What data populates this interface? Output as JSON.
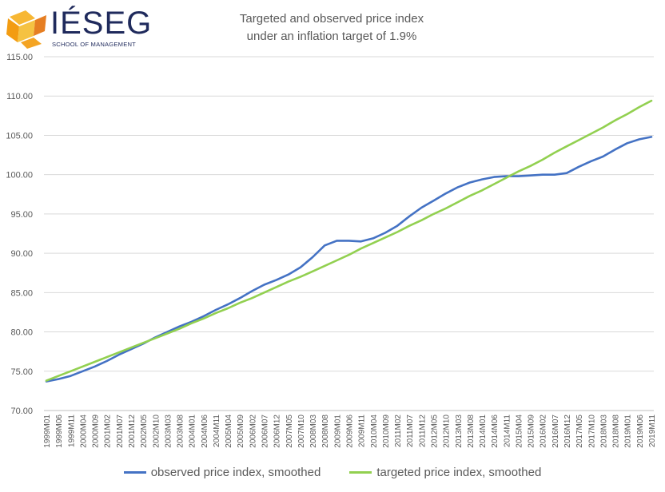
{
  "logo": {
    "name": "IÉSEG",
    "subtitle": "SCHOOL OF MANAGEMENT"
  },
  "chart_data": {
    "type": "line",
    "title": [
      "Targeted and observed price index",
      "under an inflation target of 1.9%"
    ],
    "xlabel": "",
    "ylabel": "",
    "ylim": [
      70,
      115
    ],
    "y_ticks": [
      "70.00",
      "75.00",
      "80.00",
      "85.00",
      "90.00",
      "95.00",
      "100.00",
      "105.00",
      "110.00",
      "115.00"
    ],
    "grid": true,
    "legend_position": "bottom",
    "x_tick_labels": [
      "1999M01",
      "1999M06",
      "1999M11",
      "2000M04",
      "2000M09",
      "2001M02",
      "2001M07",
      "2001M12",
      "2002M05",
      "2002M10",
      "2003M03",
      "2003M08",
      "2004M01",
      "2004M06",
      "2004M11",
      "2005M04",
      "2005M09",
      "2006M02",
      "2006M07",
      "2006M12",
      "2007M05",
      "2007M10",
      "2008M03",
      "2008M08",
      "2009M01",
      "2009M06",
      "2009M11",
      "2010M04",
      "2010M09",
      "2011M02",
      "2011M07",
      "2011M12",
      "2012M05",
      "2012M10",
      "2013M03",
      "2013M08",
      "2014M01",
      "2014M06",
      "2014M11",
      "2015M04",
      "2015M09",
      "2016M02",
      "2016M07",
      "2016M12",
      "2017M05",
      "2017M10",
      "2018M03",
      "2018M08",
      "2019M01",
      "2019M06",
      "2019M11"
    ],
    "series": [
      {
        "name": "observed price index, smoothed",
        "color": "#4472c4",
        "values": [
          73.7,
          74.0,
          74.4,
          75.0,
          75.6,
          76.3,
          77.1,
          77.8,
          78.5,
          79.3,
          80.0,
          80.7,
          81.3,
          82.0,
          82.8,
          83.5,
          84.3,
          85.2,
          86.0,
          86.6,
          87.3,
          88.2,
          89.5,
          91.0,
          91.6,
          91.6,
          91.5,
          91.9,
          92.6,
          93.5,
          94.7,
          95.8,
          96.7,
          97.6,
          98.4,
          99.0,
          99.4,
          99.7,
          99.8,
          99.8,
          99.9,
          100.0,
          100.0,
          100.2,
          101.0,
          101.7,
          102.3,
          103.2,
          104.0,
          104.5,
          104.8
        ]
      },
      {
        "name": "targeted price index, smoothed",
        "color": "#92d050",
        "values": [
          73.8,
          74.4,
          75.0,
          75.6,
          76.2,
          76.8,
          77.4,
          78.0,
          78.6,
          79.2,
          79.8,
          80.4,
          81.1,
          81.7,
          82.4,
          83.0,
          83.7,
          84.3,
          85.0,
          85.7,
          86.4,
          87.0,
          87.7,
          88.4,
          89.1,
          89.8,
          90.6,
          91.3,
          92.0,
          92.7,
          93.5,
          94.2,
          95.0,
          95.7,
          96.5,
          97.3,
          98.0,
          98.8,
          99.6,
          100.4,
          101.1,
          101.9,
          102.8,
          103.6,
          104.4,
          105.2,
          106.0,
          106.9,
          107.7,
          108.6,
          109.4
        ]
      }
    ]
  }
}
